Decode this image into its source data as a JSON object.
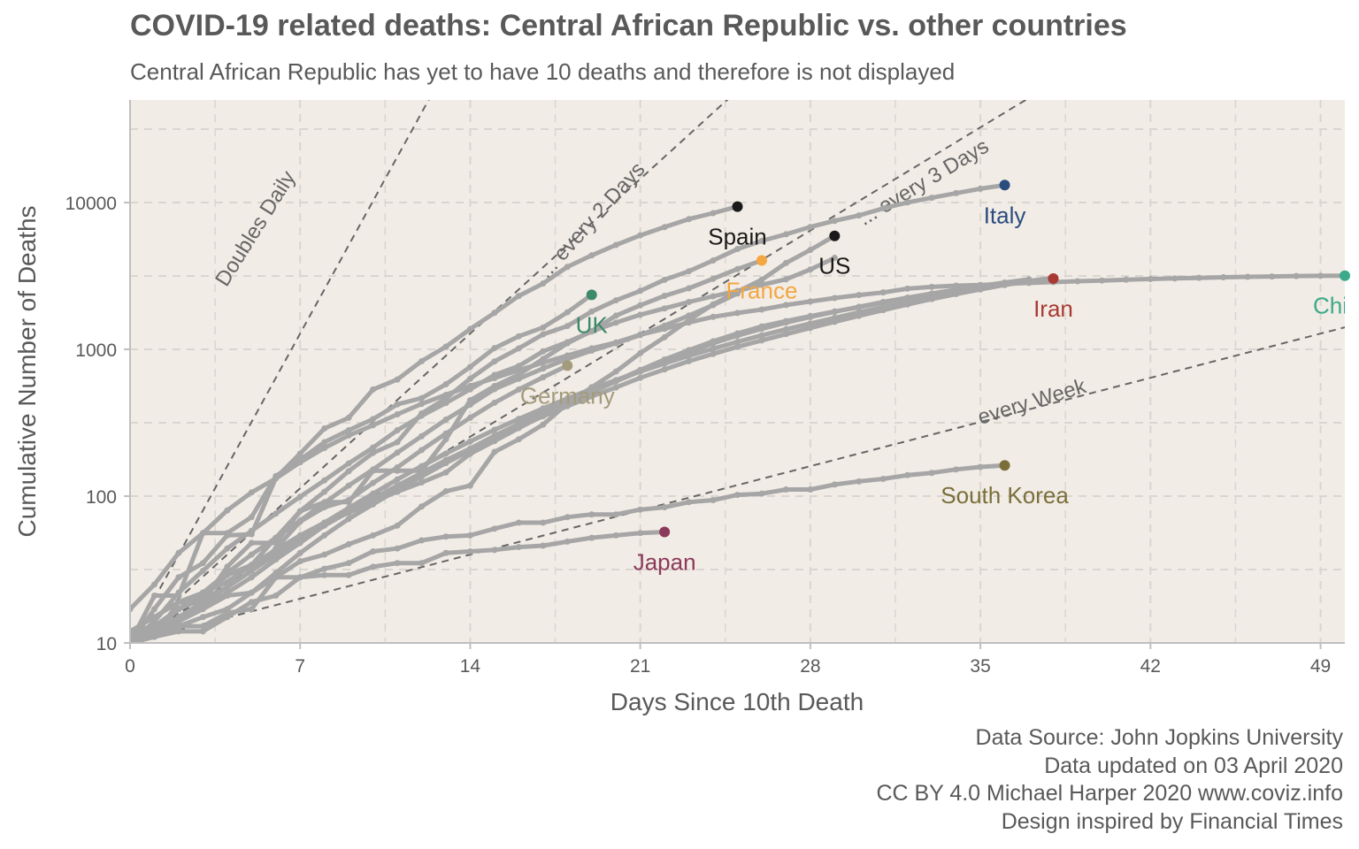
{
  "title": "COVID-19 related deaths: Central African Republic vs. other countries",
  "subtitle": "Central African Republic has yet to have 10 deaths and therefore is not displayed",
  "caption": [
    "Data Source: John Jopkins University",
    "Data updated on 03 April 2020",
    "CC BY 4.0 Michael Harper 2020 www.coviz.info",
    "Design inspired by Financial Times"
  ],
  "chart_data": {
    "type": "line",
    "title": "COVID-19 related deaths: Central African Republic vs. other countries",
    "subtitle": "Central African Republic has yet to have 10 deaths and therefore is not displayed",
    "xlabel": "Days Since 10th Death",
    "ylabel": "Cumulative Number of Deaths",
    "y_scale": "log10",
    "xlim": [
      0,
      50
    ],
    "ylim": [
      10,
      50000
    ],
    "x_ticks": [
      0,
      7,
      14,
      21,
      28,
      35,
      42,
      49
    ],
    "y_ticks": [
      10,
      100,
      1000,
      10000
    ],
    "y_tick_labels": [
      "10",
      "100",
      "1000",
      "10000"
    ],
    "grid": true,
    "background": "#f2ece6",
    "line_color": "#a6a6a6",
    "guide_color": "#666666",
    "guides": [
      {
        "label": "Doubles Daily",
        "doubling_days": 1
      },
      {
        "label": "... every 2 Days",
        "doubling_days": 2
      },
      {
        "label": "... every 3 Days",
        "doubling_days": 3
      },
      {
        "label": "every  Week",
        "doubling_days": 7
      }
    ],
    "series": [
      {
        "name": "Italy",
        "color": "#2b4c7e",
        "highlight": true,
        "x": [
          0,
          1,
          2,
          3,
          4,
          5,
          6,
          7,
          8,
          9,
          10,
          11,
          12,
          13,
          14,
          15,
          16,
          17,
          18,
          19,
          20,
          21,
          22,
          23,
          24,
          25,
          26,
          27,
          28,
          29,
          30,
          31,
          32,
          33,
          34,
          35,
          36
        ],
        "y": [
          10,
          12,
          17,
          21,
          29,
          34,
          52,
          79,
          107,
          148,
          197,
          233,
          366,
          463,
          631,
          827,
          1016,
          1266,
          1441,
          1809,
          2158,
          2503,
          2978,
          3405,
          4032,
          4825,
          5476,
          6077,
          6820,
          7503,
          8165,
          9134,
          10023,
          10779,
          11591,
          12428,
          13155
        ]
      },
      {
        "name": "Spain",
        "color": "#1a1a1a",
        "highlight": true,
        "x": [
          0,
          1,
          2,
          3,
          4,
          5,
          6,
          7,
          8,
          9,
          10,
          11,
          12,
          13,
          14,
          15,
          16,
          17,
          18,
          19,
          20,
          21,
          22,
          23,
          24,
          25
        ],
        "y": [
          10,
          17,
          28,
          35,
          54,
          55,
          133,
          195,
          289,
          342,
          533,
          623,
          830,
          1043,
          1375,
          1772,
          2311,
          2808,
          3647,
          4365,
          5138,
          5982,
          6803,
          7716,
          8464,
          9387
        ]
      },
      {
        "name": "France",
        "color": "#f4a640",
        "highlight": true,
        "x": [
          0,
          1,
          2,
          3,
          4,
          5,
          6,
          7,
          8,
          9,
          10,
          11,
          12,
          13,
          14,
          15,
          16,
          17,
          18,
          19,
          20,
          21,
          22,
          23,
          24,
          25,
          26
        ],
        "y": [
          10,
          11,
          19,
          19,
          33,
          48,
          48,
          79,
          91,
          91,
          149,
          149,
          149,
          244,
          450,
          562,
          674,
          860,
          1100,
          1331,
          1696,
          1995,
          2314,
          2606,
          3024,
          3523,
          4032
        ]
      },
      {
        "name": "US",
        "color": "#1a1a1a",
        "highlight": true,
        "x": [
          0,
          1,
          2,
          3,
          4,
          5,
          6,
          7,
          8,
          9,
          10,
          11,
          12,
          13,
          14,
          15,
          16,
          17,
          18,
          19,
          20,
          21,
          22,
          23,
          24,
          25,
          26,
          27,
          28,
          29
        ],
        "y": [
          11,
          12,
          14,
          17,
          21,
          22,
          28,
          36,
          40,
          47,
          54,
          63,
          85,
          108,
          118,
          200,
          244,
          307,
          427,
          552,
          706,
          942,
          1209,
          1581,
          2026,
          2467,
          2978,
          3873,
          4757,
          5926
        ]
      },
      {
        "name": "Iran",
        "color": "#a83a32",
        "highlight": true,
        "x": [
          0,
          1,
          2,
          3,
          4,
          5,
          6,
          7,
          8,
          9,
          10,
          11,
          12,
          13,
          14,
          15,
          16,
          17,
          18,
          19,
          20,
          21,
          22,
          23,
          24,
          25,
          26,
          27,
          28,
          29,
          30,
          31,
          32,
          33,
          34,
          35,
          36,
          37,
          38
        ],
        "y": [
          12,
          15,
          19,
          22,
          26,
          34,
          43,
          54,
          66,
          77,
          92,
          107,
          124,
          145,
          194,
          237,
          291,
          354,
          429,
          514,
          611,
          724,
          853,
          988,
          1135,
          1284,
          1433,
          1556,
          1685,
          1812,
          1934,
          2077,
          2234,
          2378,
          2517,
          2640,
          2757,
          2898,
          3036
        ]
      },
      {
        "name": "China",
        "color": "#3aaa8a",
        "highlight": true,
        "x": [
          0,
          1,
          2,
          3,
          4,
          5,
          6,
          7,
          8,
          9,
          10,
          11,
          12,
          13,
          14,
          15,
          16,
          17,
          18,
          19,
          20,
          21,
          22,
          23,
          24,
          25,
          26,
          27,
          28,
          29,
          30,
          31,
          32,
          33,
          34,
          35,
          36,
          37,
          38,
          39,
          40,
          41,
          42,
          43,
          44,
          45,
          46,
          47,
          48,
          49,
          50
        ],
        "y": [
          17,
          25,
          41,
          56,
          80,
          106,
          132,
          170,
          213,
          259,
          304,
          361,
          425,
          490,
          563,
          637,
          722,
          811,
          908,
          1016,
          1113,
          1259,
          1380,
          1523,
          1665,
          1770,
          1868,
          2004,
          2118,
          2236,
          2345,
          2442,
          2592,
          2663,
          2715,
          2744,
          2788,
          2835,
          2870,
          2912,
          2943,
          2981,
          3012,
          3042,
          3070,
          3097,
          3119,
          3136,
          3158,
          3169,
          3176
        ]
      },
      {
        "name": "UK",
        "color": "#3d8a6a",
        "highlight": true,
        "x": [
          0,
          1,
          2,
          3,
          4,
          5,
          6,
          7,
          8,
          9,
          10,
          11,
          12,
          13,
          14,
          15,
          16,
          17,
          18,
          19
        ],
        "y": [
          10,
          21,
          21,
          56,
          56,
          72,
          137,
          177,
          233,
          281,
          335,
          422,
          465,
          578,
          759,
          1019,
          1228,
          1408,
          1789,
          2352
        ]
      },
      {
        "name": "Germany",
        "color": "#a39b7c",
        "highlight": true,
        "x": [
          0,
          1,
          2,
          3,
          4,
          5,
          6,
          7,
          8,
          9,
          10,
          11,
          12,
          13,
          14,
          15,
          16,
          17,
          18
        ],
        "y": [
          12,
          13,
          17,
          20,
          24,
          31,
          44,
          67,
          84,
          94,
          123,
          157,
          206,
          267,
          342,
          433,
          533,
          645,
          775
        ]
      },
      {
        "name": "South Korea",
        "color": "#7a6f3a",
        "highlight": true,
        "x": [
          0,
          1,
          2,
          3,
          4,
          5,
          6,
          7,
          8,
          9,
          10,
          11,
          12,
          13,
          14,
          15,
          16,
          17,
          18,
          19,
          20,
          21,
          22,
          23,
          24,
          25,
          26,
          27,
          28,
          29,
          30,
          31,
          32,
          33,
          34,
          35,
          36
        ],
        "y": [
          11,
          12,
          13,
          13,
          16,
          17,
          28,
          28,
          32,
          35,
          42,
          44,
          50,
          53,
          54,
          60,
          66,
          66,
          72,
          75,
          75,
          81,
          84,
          91,
          94,
          102,
          104,
          111,
          111,
          120,
          126,
          131,
          139,
          144,
          152,
          158,
          162
        ]
      },
      {
        "name": "Japan",
        "color": "#8b3a5a",
        "highlight": true,
        "x": [
          0,
          1,
          2,
          3,
          4,
          5,
          6,
          7,
          8,
          9,
          10,
          11,
          12,
          13,
          14,
          15,
          16,
          17,
          18,
          19,
          20,
          21,
          22
        ],
        "y": [
          10,
          11,
          12,
          12,
          15,
          19,
          21,
          28,
          29,
          29,
          33,
          35,
          35,
          41,
          42,
          43,
          45,
          46,
          49,
          52,
          54,
          56,
          57
        ]
      },
      {
        "name": "",
        "highlight": false,
        "x": [
          0,
          1,
          2,
          3,
          4,
          5,
          6,
          7,
          8,
          9,
          10,
          11,
          12,
          13,
          14,
          15,
          16,
          17,
          18,
          19,
          20,
          21,
          22,
          23,
          24,
          25,
          26,
          27,
          28,
          29
        ],
        "y": [
          10,
          14,
          22,
          31,
          44,
          58,
          76,
          99,
          128,
          167,
          214,
          281,
          353,
          431,
          534,
          669,
          771,
          969,
          1120,
          1322,
          1520,
          1720,
          1900,
          2100,
          2300,
          2500,
          2750,
          3000,
          3500,
          4200
        ]
      },
      {
        "name": "",
        "highlight": false,
        "x": [
          0,
          1,
          2,
          3,
          4,
          5,
          6,
          7,
          8,
          9,
          10,
          11,
          12,
          13,
          14,
          15,
          16,
          17,
          18,
          19,
          20,
          21,
          22,
          23,
          24,
          25,
          26,
          27,
          28,
          29,
          30,
          31,
          32,
          33,
          34,
          35,
          36,
          37
        ],
        "y": [
          10,
          12,
          15,
          18,
          22,
          28,
          37,
          48,
          63,
          78,
          96,
          118,
          144,
          176,
          211,
          258,
          311,
          372,
          441,
          510,
          605,
          710,
          820,
          955,
          1100,
          1240,
          1380,
          1520,
          1660,
          1800,
          1950,
          2100,
          2250,
          2400,
          2550,
          2700,
          2850,
          3000
        ]
      },
      {
        "name": "",
        "highlight": false,
        "x": [
          0,
          1,
          2,
          3,
          4,
          5,
          6,
          7,
          8,
          9,
          10,
          11,
          12,
          13,
          14,
          15,
          16,
          17,
          18,
          19,
          20,
          21,
          22,
          23,
          24,
          25,
          26,
          27,
          28,
          29,
          30,
          31,
          32,
          33,
          34,
          35,
          36,
          37
        ],
        "y": [
          10,
          11,
          13,
          15,
          17,
          22,
          30,
          41,
          54,
          70,
          88,
          110,
          136,
          168,
          205,
          248,
          296,
          350,
          410,
          478,
          550,
          640,
          730,
          830,
          930,
          1040,
          1150,
          1270,
          1400,
          1540,
          1690,
          1850,
          2020,
          2200,
          2380,
          2560,
          2750,
          2950
        ]
      },
      {
        "name": "",
        "highlight": false,
        "x": [
          0,
          1,
          2,
          3,
          4,
          5,
          6,
          7,
          8,
          9,
          10,
          11,
          12,
          13,
          14,
          15,
          16,
          17,
          18,
          19,
          20,
          21,
          22,
          23,
          24,
          25
        ],
        "y": [
          10,
          13,
          17,
          22,
          30,
          40,
          52,
          68,
          90,
          118,
          152,
          198,
          256,
          332,
          420,
          536,
          630,
          740,
          860,
          980,
          1100,
          1250,
          1450,
          1700,
          2000,
          2400
        ]
      },
      {
        "name": "",
        "highlight": false,
        "x": [
          0,
          1,
          2,
          3,
          4,
          5,
          6,
          7,
          8,
          9,
          10,
          11,
          12,
          13,
          14,
          15,
          16,
          17,
          18,
          19,
          20,
          21,
          22,
          23,
          24,
          25,
          26,
          27,
          28,
          29,
          30,
          31,
          32,
          33,
          34,
          35,
          36,
          37,
          38
        ],
        "y": [
          10,
          12,
          15,
          19,
          24,
          31,
          40,
          52,
          66,
          83,
          104,
          130,
          160,
          195,
          236,
          283,
          336,
          396,
          463,
          537,
          618,
          706,
          801,
          903,
          1010,
          1125,
          1245,
          1370,
          1500,
          1640,
          1785,
          1935,
          2090,
          2250,
          2410,
          2575,
          2745,
          2915,
          3080
        ]
      }
    ]
  }
}
